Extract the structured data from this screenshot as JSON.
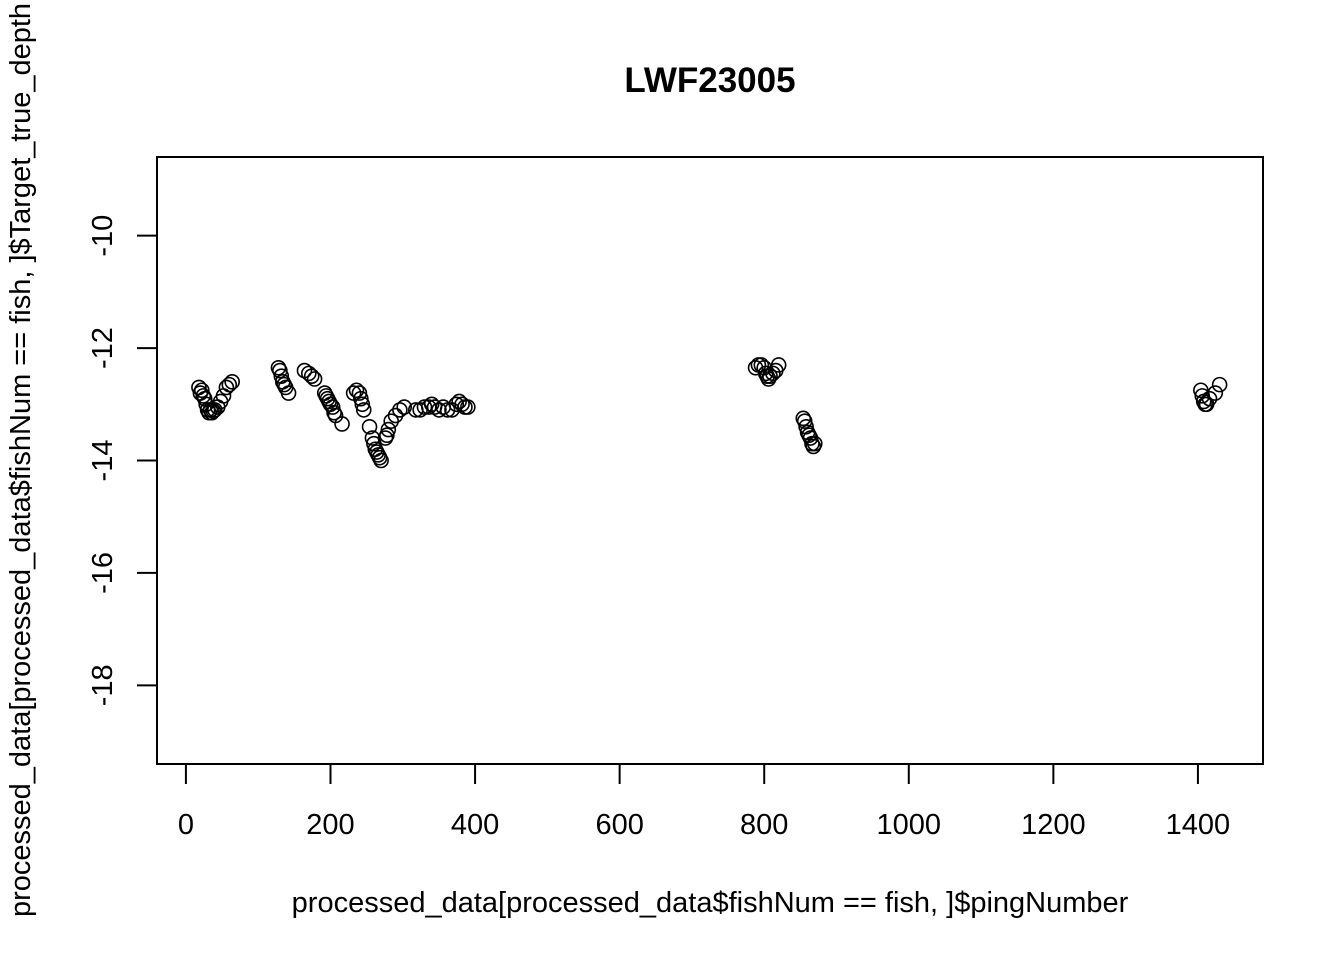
{
  "chart_data": {
    "type": "scatter",
    "title": "LWF23005",
    "xlabel": "processed_data[processed_data$fishNum == fish, ]$pingNumber",
    "ylabel": "processed_data[processed_data$fishNum == fish, ]$Target_true_depth",
    "xlim": [
      -40,
      1490
    ],
    "ylim": [
      -19.4,
      -8.6
    ],
    "x_ticks": [
      0,
      200,
      400,
      600,
      800,
      1000,
      1200,
      1400
    ],
    "y_ticks": [
      -18,
      -16,
      -14,
      -12,
      -10
    ],
    "grid": false,
    "marker": "open-circle",
    "x": [
      18,
      20,
      22,
      24,
      26,
      28,
      30,
      32,
      34,
      36,
      38,
      40,
      44,
      48,
      52,
      56,
      60,
      64,
      128,
      130,
      132,
      134,
      136,
      138,
      142,
      164,
      170,
      174,
      178,
      192,
      194,
      196,
      198,
      200,
      203,
      205,
      207,
      216,
      232,
      236,
      240,
      242,
      244,
      246,
      254,
      258,
      260,
      262,
      264,
      266,
      268,
      270,
      276,
      278,
      280,
      284,
      290,
      296,
      302,
      318,
      324,
      330,
      336,
      340,
      344,
      350,
      356,
      362,
      368,
      374,
      378,
      382,
      386,
      390,
      788,
      792,
      796,
      800,
      802,
      804,
      806,
      808,
      812,
      816,
      820,
      854,
      856,
      858,
      860,
      862,
      864,
      866,
      868,
      870,
      1404,
      1406,
      1408,
      1410,
      1412,
      1416,
      1424,
      1430
    ],
    "y": [
      -12.7,
      -12.8,
      -12.75,
      -12.85,
      -12.9,
      -13.0,
      -13.1,
      -13.15,
      -13.1,
      -13.15,
      -13.12,
      -13.1,
      -13.05,
      -12.95,
      -12.85,
      -12.7,
      -12.65,
      -12.6,
      -12.35,
      -12.4,
      -12.5,
      -12.6,
      -12.65,
      -12.7,
      -12.8,
      -12.4,
      -12.45,
      -12.5,
      -12.55,
      -12.8,
      -12.85,
      -12.9,
      -12.95,
      -13.0,
      -13.05,
      -13.15,
      -13.2,
      -13.35,
      -12.8,
      -12.75,
      -12.8,
      -12.9,
      -13.0,
      -13.1,
      -13.4,
      -13.6,
      -13.7,
      -13.8,
      -13.85,
      -13.9,
      -13.95,
      -14.0,
      -13.6,
      -13.55,
      -13.45,
      -13.3,
      -13.2,
      -13.1,
      -13.05,
      -13.1,
      -13.1,
      -13.05,
      -13.05,
      -13.0,
      -13.05,
      -13.1,
      -13.05,
      -13.1,
      -13.1,
      -13.0,
      -12.95,
      -13.0,
      -13.05,
      -13.05,
      -12.35,
      -12.3,
      -12.3,
      -12.35,
      -12.45,
      -12.5,
      -12.55,
      -12.5,
      -12.45,
      -12.4,
      -12.3,
      -13.25,
      -13.3,
      -13.4,
      -13.5,
      -13.55,
      -13.6,
      -13.7,
      -13.75,
      -13.7,
      -12.75,
      -12.85,
      -12.95,
      -13.0,
      -13.0,
      -12.9,
      -12.8,
      -12.65
    ]
  }
}
